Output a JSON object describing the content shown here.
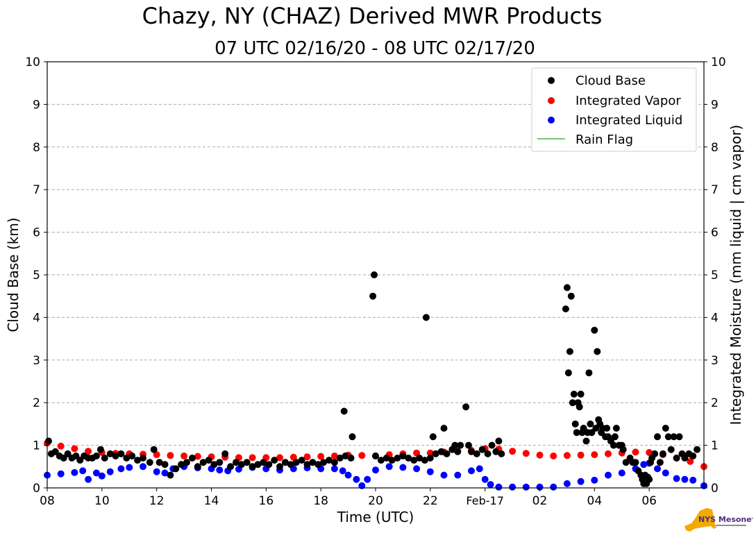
{
  "chart_data": {
    "type": "scatter",
    "title": "Chazy, NY (CHAZ) Derived MWR Products",
    "subtitle": "07 UTC 02/16/20 - 08 UTC 02/17/20",
    "xlabel": "Time (UTC)",
    "ylabel": "Cloud Base (km)",
    "ylabel_right": "Integrated Moisture (mm liquid | cm vapor)",
    "x_unit": "hours since 00 UTC 02/16/20",
    "xlim": [
      32,
      56
    ],
    "ylim": [
      0,
      10
    ],
    "ylim_right": [
      0,
      10
    ],
    "grid": true,
    "legend_position": "top-right",
    "x_ticks": [
      {
        "x": 32,
        "label": "08"
      },
      {
        "x": 34,
        "label": "10"
      },
      {
        "x": 36,
        "label": "12"
      },
      {
        "x": 38,
        "label": "14"
      },
      {
        "x": 40,
        "label": "16"
      },
      {
        "x": 42,
        "label": "18"
      },
      {
        "x": 44,
        "label": "20"
      },
      {
        "x": 46,
        "label": "22"
      },
      {
        "x": 48,
        "label": "Feb-17"
      },
      {
        "x": 50,
        "label": "02"
      },
      {
        "x": 52,
        "label": "04"
      },
      {
        "x": 54,
        "label": "06"
      }
    ],
    "y_ticks": [
      "0",
      "1",
      "2",
      "3",
      "4",
      "5",
      "6",
      "7",
      "8",
      "9",
      "10"
    ],
    "series": [
      {
        "name": "Cloud Base",
        "color": "#000000",
        "marker": "circle",
        "points": [
          [
            32.05,
            1.1
          ],
          [
            32.15,
            0.8
          ],
          [
            32.3,
            0.85
          ],
          [
            32.45,
            0.75
          ],
          [
            32.6,
            0.7
          ],
          [
            32.75,
            0.8
          ],
          [
            32.9,
            0.7
          ],
          [
            33.05,
            0.75
          ],
          [
            33.2,
            0.65
          ],
          [
            33.35,
            0.75
          ],
          [
            33.5,
            0.7
          ],
          [
            33.65,
            0.7
          ],
          [
            33.8,
            0.75
          ],
          [
            33.95,
            0.9
          ],
          [
            34.1,
            0.7
          ],
          [
            34.3,
            0.8
          ],
          [
            34.5,
            0.75
          ],
          [
            34.7,
            0.8
          ],
          [
            34.9,
            0.7
          ],
          [
            35.1,
            0.75
          ],
          [
            35.3,
            0.65
          ],
          [
            35.5,
            0.7
          ],
          [
            35.75,
            0.6
          ],
          [
            35.9,
            0.9
          ],
          [
            36.1,
            0.6
          ],
          [
            36.3,
            0.55
          ],
          [
            36.5,
            0.3
          ],
          [
            36.7,
            0.45
          ],
          [
            36.9,
            0.55
          ],
          [
            37.1,
            0.6
          ],
          [
            37.3,
            0.7
          ],
          [
            37.5,
            0.5
          ],
          [
            37.7,
            0.6
          ],
          [
            37.9,
            0.65
          ],
          [
            38.1,
            0.55
          ],
          [
            38.3,
            0.6
          ],
          [
            38.5,
            0.8
          ],
          [
            38.7,
            0.5
          ],
          [
            38.9,
            0.6
          ],
          [
            39.1,
            0.55
          ],
          [
            39.3,
            0.6
          ],
          [
            39.5,
            0.5
          ],
          [
            39.7,
            0.55
          ],
          [
            39.9,
            0.6
          ],
          [
            40.1,
            0.55
          ],
          [
            40.3,
            0.65
          ],
          [
            40.5,
            0.5
          ],
          [
            40.7,
            0.6
          ],
          [
            40.9,
            0.55
          ],
          [
            41.1,
            0.6
          ],
          [
            41.3,
            0.65
          ],
          [
            41.5,
            0.55
          ],
          [
            41.7,
            0.6
          ],
          [
            41.9,
            0.55
          ],
          [
            42.1,
            0.6
          ],
          [
            42.3,
            0.65
          ],
          [
            42.5,
            0.6
          ],
          [
            42.7,
            0.7
          ],
          [
            42.9,
            0.75
          ],
          [
            43.1,
            0.7
          ],
          [
            42.85,
            1.8
          ],
          [
            43.15,
            1.2
          ],
          [
            43.9,
            4.5
          ],
          [
            43.95,
            5.0
          ],
          [
            44.0,
            0.75
          ],
          [
            44.2,
            0.65
          ],
          [
            44.4,
            0.7
          ],
          [
            44.6,
            0.65
          ],
          [
            44.8,
            0.7
          ],
          [
            45.0,
            0.75
          ],
          [
            45.2,
            0.7
          ],
          [
            45.4,
            0.65
          ],
          [
            45.6,
            0.7
          ],
          [
            45.8,
            0.65
          ],
          [
            45.85,
            4.0
          ],
          [
            46.0,
            0.7
          ],
          [
            46.1,
            1.2
          ],
          [
            46.2,
            0.8
          ],
          [
            46.4,
            0.85
          ],
          [
            46.5,
            1.4
          ],
          [
            46.6,
            0.8
          ],
          [
            46.8,
            0.9
          ],
          [
            46.9,
            1.0
          ],
          [
            47.0,
            0.85
          ],
          [
            47.1,
            1.0
          ],
          [
            47.3,
            1.9
          ],
          [
            47.4,
            1.0
          ],
          [
            47.5,
            0.85
          ],
          [
            47.7,
            0.8
          ],
          [
            47.9,
            0.9
          ],
          [
            48.1,
            0.8
          ],
          [
            48.25,
            1.0
          ],
          [
            48.4,
            0.85
          ],
          [
            48.5,
            1.1
          ],
          [
            48.6,
            0.8
          ],
          [
            50.95,
            4.2
          ],
          [
            51.0,
            4.7
          ],
          [
            51.05,
            2.7
          ],
          [
            51.1,
            3.2
          ],
          [
            51.15,
            4.5
          ],
          [
            51.2,
            2.0
          ],
          [
            51.25,
            2.2
          ],
          [
            51.3,
            1.5
          ],
          [
            51.35,
            1.3
          ],
          [
            51.4,
            2.0
          ],
          [
            51.45,
            1.9
          ],
          [
            51.5,
            2.2
          ],
          [
            51.55,
            1.3
          ],
          [
            51.6,
            1.4
          ],
          [
            51.7,
            1.1
          ],
          [
            51.75,
            1.3
          ],
          [
            51.8,
            2.7
          ],
          [
            51.85,
            1.5
          ],
          [
            51.9,
            1.3
          ],
          [
            52.0,
            3.7
          ],
          [
            52.05,
            1.4
          ],
          [
            52.1,
            3.2
          ],
          [
            52.15,
            1.6
          ],
          [
            52.2,
            1.5
          ],
          [
            52.25,
            1.3
          ],
          [
            52.3,
            1.4
          ],
          [
            52.4,
            1.2
          ],
          [
            52.45,
            1.4
          ],
          [
            52.5,
            1.2
          ],
          [
            52.6,
            1.1
          ],
          [
            52.7,
            1.0
          ],
          [
            52.75,
            1.2
          ],
          [
            52.8,
            1.4
          ],
          [
            52.9,
            1.0
          ],
          [
            53.0,
            1.0
          ],
          [
            53.05,
            0.9
          ],
          [
            53.15,
            0.6
          ],
          [
            53.3,
            0.7
          ],
          [
            53.4,
            0.6
          ],
          [
            53.5,
            0.6
          ],
          [
            53.6,
            0.4
          ],
          [
            53.7,
            0.3
          ],
          [
            53.75,
            0.2
          ],
          [
            53.8,
            0.1
          ],
          [
            53.85,
            0.3
          ],
          [
            53.9,
            0.1
          ],
          [
            53.95,
            0.25
          ],
          [
            54.0,
            0.2
          ],
          [
            54.05,
            0.6
          ],
          [
            54.1,
            0.7
          ],
          [
            54.2,
            0.8
          ],
          [
            54.3,
            1.2
          ],
          [
            54.4,
            0.6
          ],
          [
            54.5,
            0.8
          ],
          [
            54.6,
            1.4
          ],
          [
            54.7,
            1.2
          ],
          [
            54.8,
            0.9
          ],
          [
            54.9,
            1.2
          ],
          [
            55.0,
            0.7
          ],
          [
            55.1,
            1.2
          ],
          [
            55.2,
            0.8
          ],
          [
            55.3,
            0.7
          ],
          [
            55.45,
            0.8
          ],
          [
            55.6,
            0.75
          ],
          [
            55.75,
            0.9
          ]
        ]
      },
      {
        "name": "Integrated Vapor",
        "color": "#ff0000",
        "marker": "circle",
        "points": [
          [
            32.0,
            1.05
          ],
          [
            32.5,
            0.98
          ],
          [
            33.0,
            0.92
          ],
          [
            33.5,
            0.86
          ],
          [
            34.0,
            0.83
          ],
          [
            34.5,
            0.81
          ],
          [
            35.0,
            0.8
          ],
          [
            35.5,
            0.79
          ],
          [
            36.0,
            0.78
          ],
          [
            36.5,
            0.76
          ],
          [
            37.0,
            0.75
          ],
          [
            37.5,
            0.74
          ],
          [
            38.0,
            0.73
          ],
          [
            38.5,
            0.72
          ],
          [
            39.0,
            0.71
          ],
          [
            39.5,
            0.71
          ],
          [
            40.0,
            0.71
          ],
          [
            40.5,
            0.71
          ],
          [
            41.0,
            0.72
          ],
          [
            41.5,
            0.73
          ],
          [
            42.0,
            0.74
          ],
          [
            42.5,
            0.75
          ],
          [
            43.0,
            0.77
          ],
          [
            43.5,
            0.76
          ],
          [
            44.0,
            0.75
          ],
          [
            44.5,
            0.78
          ],
          [
            45.0,
            0.8
          ],
          [
            45.5,
            0.82
          ],
          [
            46.0,
            0.82
          ],
          [
            46.5,
            0.84
          ],
          [
            47.0,
            0.86
          ],
          [
            47.5,
            0.88
          ],
          [
            48.0,
            0.92
          ],
          [
            48.5,
            0.91
          ],
          [
            49.0,
            0.86
          ],
          [
            49.5,
            0.81
          ],
          [
            50.0,
            0.77
          ],
          [
            50.5,
            0.75
          ],
          [
            51.0,
            0.76
          ],
          [
            51.5,
            0.77
          ],
          [
            52.0,
            0.78
          ],
          [
            52.5,
            0.8
          ],
          [
            53.0,
            0.82
          ],
          [
            53.5,
            0.84
          ],
          [
            54.0,
            0.83
          ],
          [
            54.5,
            0.78
          ],
          [
            55.0,
            0.7
          ],
          [
            55.5,
            0.62
          ],
          [
            56.0,
            0.5
          ]
        ]
      },
      {
        "name": "Integrated Liquid",
        "color": "#0000ff",
        "marker": "circle",
        "points": [
          [
            32.0,
            0.3
          ],
          [
            32.5,
            0.33
          ],
          [
            33.0,
            0.36
          ],
          [
            33.3,
            0.4
          ],
          [
            33.5,
            0.2
          ],
          [
            33.8,
            0.35
          ],
          [
            34.0,
            0.28
          ],
          [
            34.3,
            0.38
          ],
          [
            34.7,
            0.45
          ],
          [
            35.0,
            0.48
          ],
          [
            35.5,
            0.5
          ],
          [
            36.0,
            0.38
          ],
          [
            36.3,
            0.35
          ],
          [
            36.6,
            0.45
          ],
          [
            37.0,
            0.5
          ],
          [
            37.5,
            0.47
          ],
          [
            38.0,
            0.45
          ],
          [
            38.3,
            0.42
          ],
          [
            38.6,
            0.4
          ],
          [
            39.0,
            0.44
          ],
          [
            39.5,
            0.48
          ],
          [
            40.0,
            0.45
          ],
          [
            40.5,
            0.42
          ],
          [
            41.0,
            0.45
          ],
          [
            41.5,
            0.47
          ],
          [
            42.0,
            0.45
          ],
          [
            42.5,
            0.45
          ],
          [
            42.8,
            0.4
          ],
          [
            43.0,
            0.3
          ],
          [
            43.3,
            0.2
          ],
          [
            43.5,
            0.05
          ],
          [
            43.7,
            0.2
          ],
          [
            44.0,
            0.42
          ],
          [
            44.5,
            0.5
          ],
          [
            45.0,
            0.48
          ],
          [
            45.5,
            0.45
          ],
          [
            46.0,
            0.38
          ],
          [
            46.5,
            0.3
          ],
          [
            47.0,
            0.3
          ],
          [
            47.5,
            0.4
          ],
          [
            47.8,
            0.45
          ],
          [
            48.0,
            0.2
          ],
          [
            48.2,
            0.08
          ],
          [
            48.5,
            0.02
          ],
          [
            49.0,
            0.02
          ],
          [
            49.5,
            0.02
          ],
          [
            50.0,
            0.02
          ],
          [
            50.5,
            0.02
          ],
          [
            51.0,
            0.1
          ],
          [
            51.5,
            0.15
          ],
          [
            52.0,
            0.18
          ],
          [
            52.5,
            0.3
          ],
          [
            53.0,
            0.35
          ],
          [
            53.5,
            0.45
          ],
          [
            53.8,
            0.55
          ],
          [
            54.0,
            0.58
          ],
          [
            54.3,
            0.45
          ],
          [
            54.6,
            0.35
          ],
          [
            55.0,
            0.22
          ],
          [
            55.3,
            0.2
          ],
          [
            55.6,
            0.18
          ],
          [
            56.0,
            0.05
          ]
        ]
      },
      {
        "name": "Rain Flag",
        "color": "#4daf4a",
        "marker": "line",
        "points": []
      }
    ],
    "logo_text": "NYS Mesonet"
  }
}
